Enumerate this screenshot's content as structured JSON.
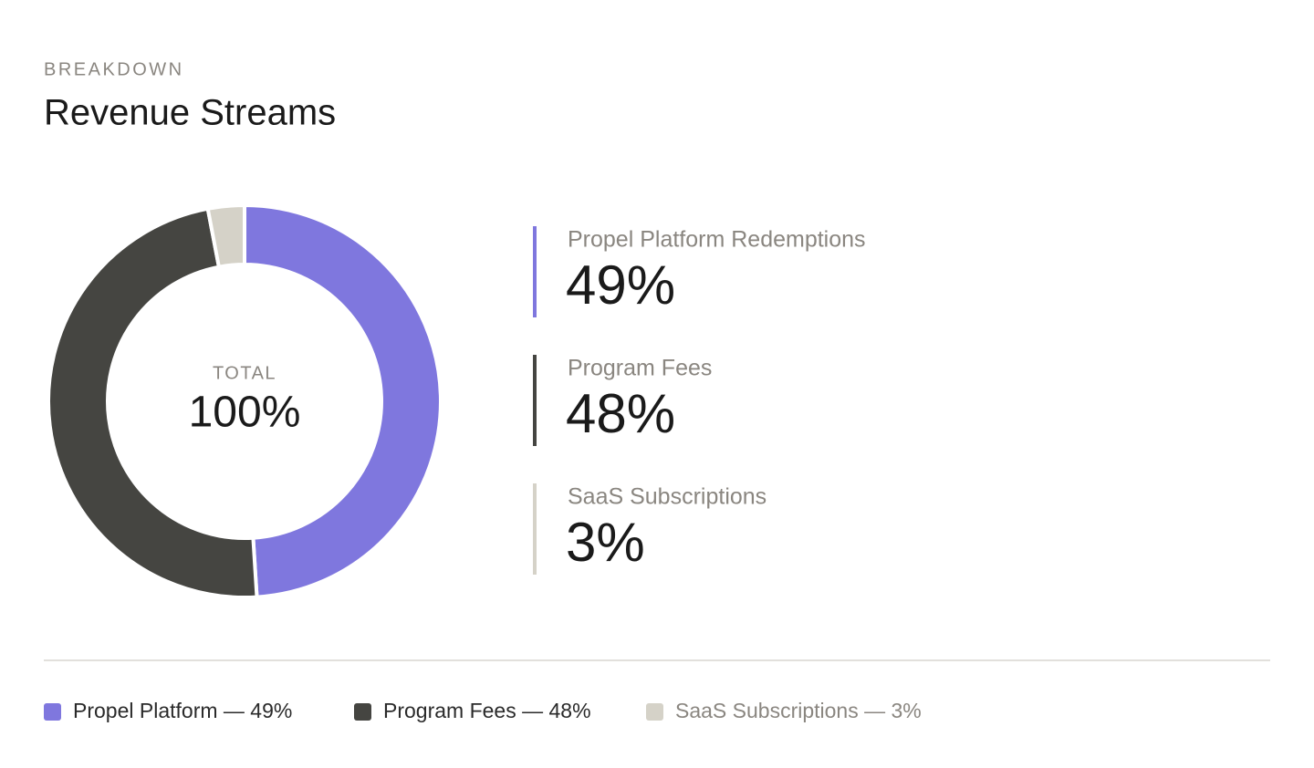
{
  "chart_data": {
    "type": "pie",
    "eyebrow": "BREAKDOWN",
    "title": "Revenue Streams",
    "center_label": "TOTAL",
    "center_value": "100%",
    "categories": [
      "Propel Platform Redemptions",
      "Program Fees",
      "SaaS Subscriptions"
    ],
    "values": [
      49,
      48,
      3
    ],
    "value_labels": [
      "49%",
      "48%",
      "3%"
    ],
    "colors": [
      "#7f77de",
      "#454541",
      "#d5d2c8"
    ],
    "legend": [
      "Propel Platform — 49%",
      "Program Fees — 48%",
      "SaaS Subscriptions — 3%"
    ],
    "donut": true
  }
}
